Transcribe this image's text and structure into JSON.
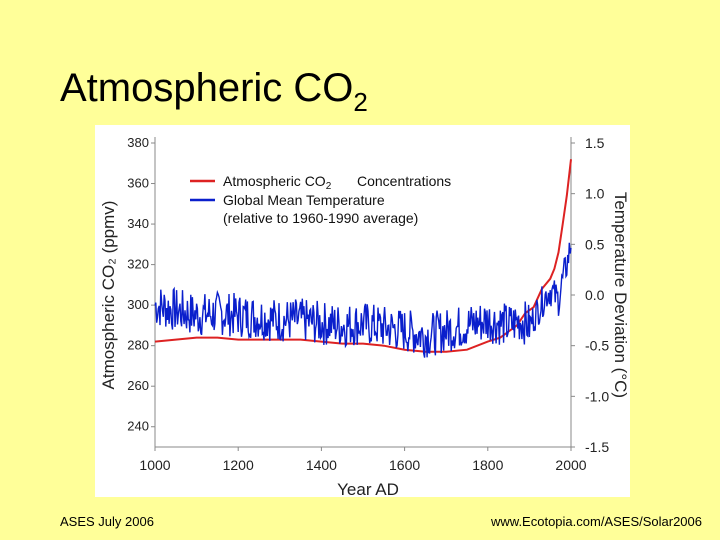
{
  "slide": {
    "title_main": "Atmospheric CO",
    "title_sub": "2",
    "footer_left": "ASES July 2006",
    "footer_right": "www.Ecotopia.com/ASES/Solar2006"
  },
  "chart_data": {
    "type": "line",
    "title": "",
    "xlabel": "Year AD",
    "ylabel_left": "Atmospheric CO₂ (ppmv)",
    "ylabel_right": "Temperature Deviation (°C)",
    "xlim": [
      1000,
      2000
    ],
    "ylim_left": [
      230,
      380
    ],
    "ylim_right": [
      -1.5,
      1.5
    ],
    "x_ticks": [
      "1000",
      "1200",
      "1400",
      "1600",
      "1800",
      "2000"
    ],
    "y_left_ticks": [
      "240",
      "260",
      "280",
      "300",
      "320",
      "340",
      "360",
      "380"
    ],
    "y_right_ticks": [
      "-1.5",
      "-1.0",
      "-0.5",
      "0.0",
      "0.5",
      "1.0",
      "1.5"
    ],
    "grid": false,
    "legend_position": "top-left",
    "legend": {
      "co2_line1": "Atmospheric CO",
      "co2_sub": "2",
      "co2_line2": "Concentrations",
      "temp_line1": "Global Mean Temperature",
      "temp_line2": "(relative to 1960-1990 average)"
    },
    "series": [
      {
        "name": "Atmospheric CO2 Concentrations",
        "axis": "left",
        "color": "#dd2222",
        "x": [
          1000,
          1050,
          1100,
          1150,
          1200,
          1250,
          1300,
          1350,
          1400,
          1450,
          1500,
          1550,
          1600,
          1650,
          1700,
          1750,
          1800,
          1830,
          1850,
          1870,
          1890,
          1910,
          1930,
          1950,
          1960,
          1970,
          1980,
          1990,
          2000
        ],
        "values": [
          282,
          283,
          284,
          284,
          283,
          283,
          283,
          283,
          282,
          281,
          281,
          280,
          278,
          277,
          277,
          278,
          282,
          284,
          287,
          290,
          296,
          299,
          308,
          313,
          318,
          326,
          340,
          354,
          372
        ]
      },
      {
        "name": "Global Mean Temperature",
        "axis": "right",
        "color": "#0a1fcc",
        "x": [
          1000,
          1050,
          1100,
          1150,
          1200,
          1250,
          1300,
          1350,
          1400,
          1450,
          1500,
          1550,
          1600,
          1650,
          1700,
          1750,
          1800,
          1850,
          1880,
          1900,
          1920,
          1940,
          1950,
          1960,
          1970,
          1980,
          1990,
          2000
        ],
        "values": [
          -0.1,
          -0.15,
          -0.2,
          -0.18,
          -0.2,
          -0.22,
          -0.25,
          -0.25,
          -0.28,
          -0.3,
          -0.28,
          -0.32,
          -0.35,
          -0.4,
          -0.35,
          -0.3,
          -0.25,
          -0.3,
          -0.25,
          -0.3,
          -0.15,
          0.0,
          0.05,
          0.0,
          -0.05,
          0.15,
          0.3,
          0.5
        ]
      }
    ]
  }
}
